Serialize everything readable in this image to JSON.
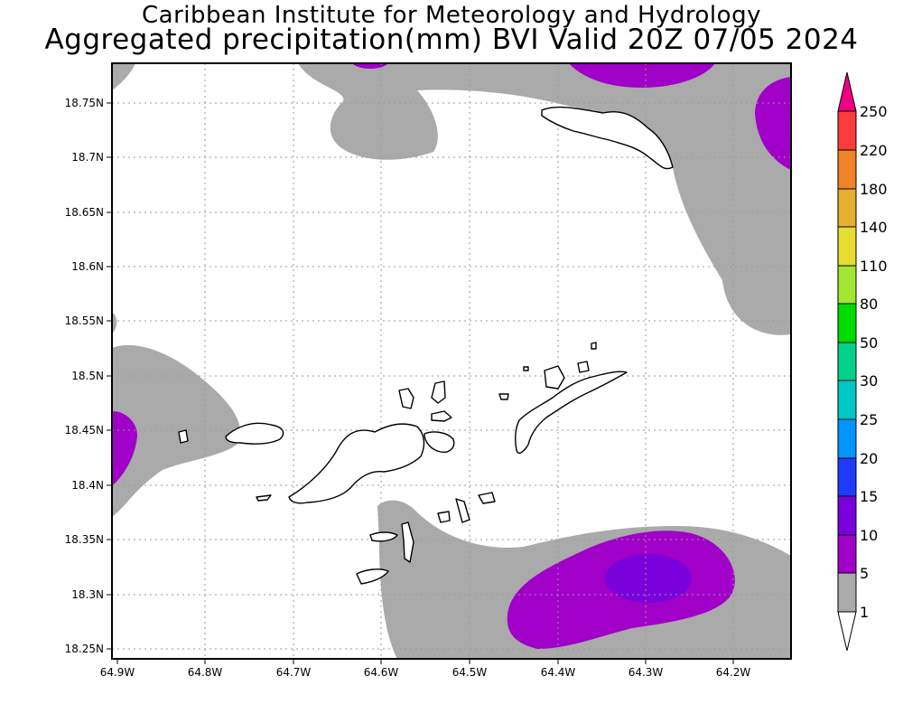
{
  "header": {
    "institute": "Caribbean Institute for Meteorology and Hydrology",
    "product": "Aggregated precipitation(mm) BVI Valid 20Z 07/05 2024"
  },
  "map": {
    "lat_labels": [
      "18.75N",
      "18.7N",
      "18.65N",
      "18.6N",
      "18.55N",
      "18.5N",
      "18.45N",
      "18.4N",
      "18.35N",
      "18.3N",
      "18.25N"
    ],
    "lon_labels": [
      "64.9W",
      "64.8W",
      "64.7W",
      "64.6W",
      "64.5W",
      "64.4W",
      "64.3W",
      "64.2W"
    ],
    "lat_range": [
      18.24,
      18.79
    ],
    "lon_range": [
      -64.9,
      -64.15
    ],
    "gridlines": "dotted"
  },
  "colorbar": {
    "labels": [
      "1",
      "5",
      "10",
      "15",
      "20",
      "25",
      "30",
      "50",
      "80",
      "110",
      "140",
      "180",
      "220",
      "250"
    ],
    "colors": [
      "#ffffff",
      "#aaaaaa",
      "#a000c8",
      "#7800dc",
      "#1e3cff",
      "#0096ff",
      "#00c8c8",
      "#00d28c",
      "#00dc00",
      "#a0e632",
      "#e6dc32",
      "#e6af2d",
      "#f08228",
      "#fa3c3c",
      "#f00082"
    ]
  }
}
